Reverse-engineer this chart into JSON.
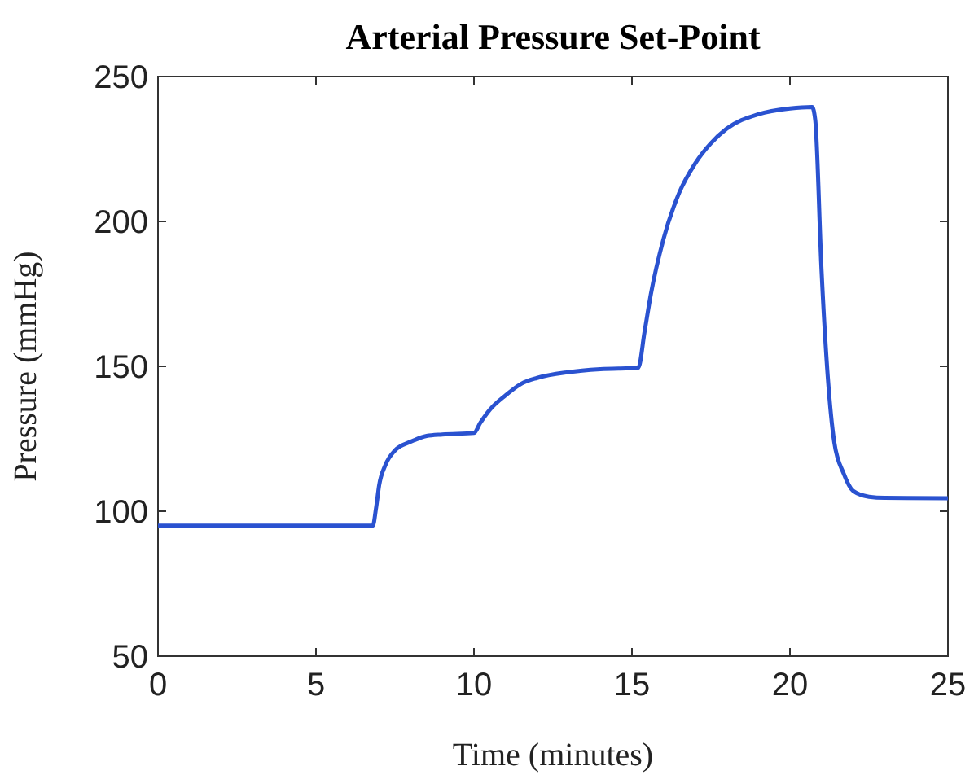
{
  "chart_data": {
    "type": "line",
    "title": "Arterial Pressure Set-Point",
    "xlabel": "Time (minutes)",
    "ylabel": "Pressure (mmHg)",
    "x": [
      0,
      6.8,
      6.9,
      7.0,
      7.2,
      7.5,
      8,
      8.5,
      9,
      10,
      10.2,
      10.5,
      11,
      11.5,
      12,
      13,
      14,
      15.2,
      15.4,
      15.6,
      16,
      16.5,
      17,
      17.5,
      18,
      19,
      20,
      20.7,
      20.8,
      21,
      21.2,
      21.4,
      21.7,
      22,
      22.5,
      23,
      25
    ],
    "series": [
      {
        "color": "#2a52d0",
        "values": [
          95,
          95,
          101,
          109,
          116,
          121,
          124,
          126,
          126.5,
          127,
          130.5,
          135,
          140,
          144,
          146,
          148,
          149,
          149.5,
          162,
          175,
          194,
          210,
          220,
          227,
          232,
          237,
          239,
          239.5,
          235,
          183,
          146,
          124,
          113,
          107,
          105,
          104.6,
          104.5
        ]
      }
    ],
    "xlim": [
      0,
      25
    ],
    "xticks": [
      0,
      5,
      10,
      15,
      20,
      25
    ],
    "ylim": [
      50,
      250
    ],
    "yticks": [
      50,
      100,
      150,
      200,
      250
    ]
  }
}
